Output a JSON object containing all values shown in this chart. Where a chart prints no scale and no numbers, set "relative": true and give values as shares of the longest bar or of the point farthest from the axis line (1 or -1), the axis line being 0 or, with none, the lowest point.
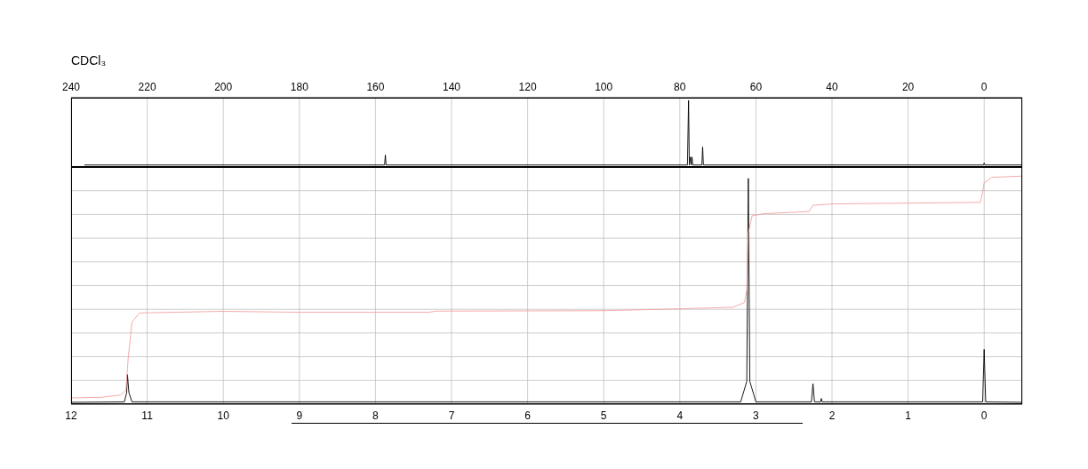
{
  "chart_data": [
    {
      "type": "line",
      "relative": true,
      "xlim": [
        240,
        -10
      ],
      "xticks": [
        240,
        220,
        200,
        180,
        160,
        140,
        120,
        100,
        80,
        60,
        40,
        20,
        0
      ],
      "grid": "x",
      "annotations": [
        "CDCl₃"
      ],
      "series": [
        {
          "color": "#000000",
          "x": [
            236.5,
            157.6,
            157.4,
            157.2,
            78,
            77.7,
            77.5,
            77.2,
            77.0,
            76.8,
            76.6,
            74.2,
            74.0,
            73.8,
            0.2,
            0,
            -0.2,
            -10
          ],
          "values": [
            0.03,
            0.03,
            0.18,
            0.03,
            0.03,
            1.0,
            0.03,
            0.15,
            0.03,
            0.15,
            0.03,
            0.03,
            0.3,
            0.03,
            0.03,
            0.06,
            0.03,
            0.03
          ]
        }
      ]
    },
    {
      "type": "line",
      "relative": true,
      "xlim": [
        12,
        -0.5
      ],
      "xticks": [
        12,
        11,
        10,
        9,
        8,
        7,
        6,
        5,
        4,
        3,
        2,
        1,
        0
      ],
      "grid": true,
      "series": [
        {
          "color": "#000000",
          "x": [
            12,
            11.3,
            11.27,
            11.26,
            11.24,
            11.2,
            3.2,
            3.12,
            3.1,
            3.08,
            3.0,
            2.27,
            2.25,
            2.23,
            2.15,
            2.14,
            2.13,
            0.02,
            0,
            -0.02,
            -0.5
          ],
          "values": [
            0.008,
            0.01,
            0.05,
            0.13,
            0.05,
            0.01,
            0.01,
            0.1,
            0.99,
            0.1,
            0.01,
            0.01,
            0.09,
            0.01,
            0.01,
            0.025,
            0.01,
            0.01,
            0.24,
            0.01,
            0.008
          ]
        },
        {
          "color": "#f4a0a0",
          "x": [
            12,
            11.6,
            11.35,
            11.28,
            11.25,
            11.2,
            11.1,
            10,
            9,
            7.3,
            7.2,
            5,
            4,
            3.3,
            3.15,
            3.12,
            3.1,
            3.05,
            2.9,
            2.3,
            2.25,
            2,
            0.05,
            0.02,
            0,
            -0.1,
            -0.5
          ],
          "values": [
            0.027,
            0.03,
            0.04,
            0.06,
            0.2,
            0.36,
            0.4,
            0.407,
            0.403,
            0.403,
            0.408,
            0.41,
            0.418,
            0.425,
            0.446,
            0.5,
            0.75,
            0.826,
            0.835,
            0.845,
            0.872,
            0.878,
            0.885,
            0.93,
            0.97,
            0.995,
            1.0
          ]
        }
      ]
    }
  ]
}
